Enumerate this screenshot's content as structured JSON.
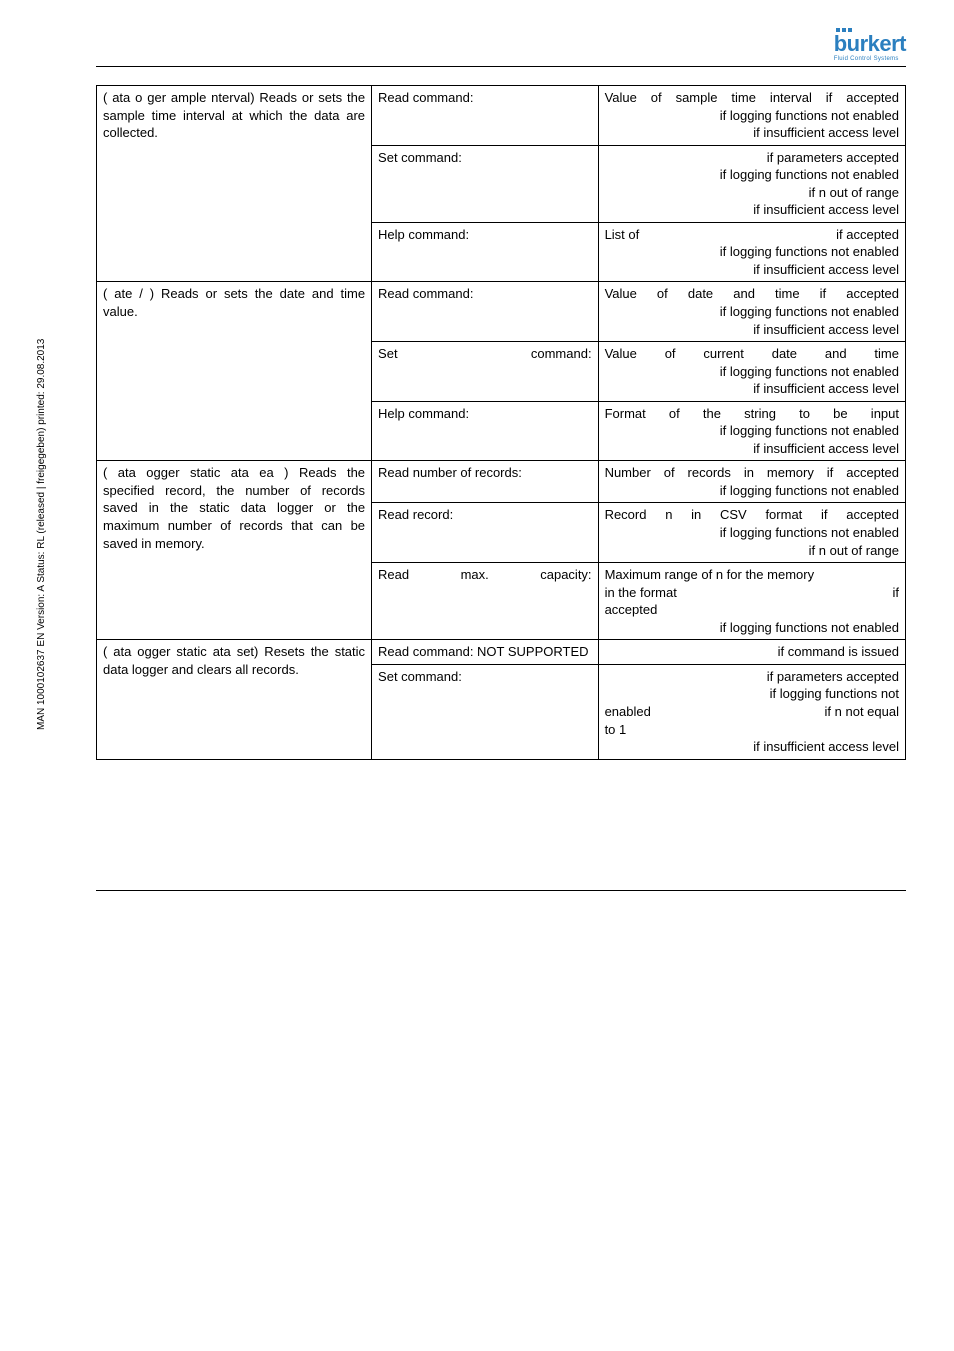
{
  "side_label": "MAN 1000102637 EN Version: A Status: RL (released | freigegeben) printed: 29.08.2013",
  "logo_word": "burkert",
  "logo_tag": "Fluid Control Systems",
  "table": {
    "rows": [
      {
        "c1": "( ata o ger ample nterval) Reads or sets the sample time interval at which the data are collected.",
        "c1_rowspan": 3,
        "c2": "Read command:",
        "c3": "Value of sample time interval if accepted\n if logging functions not enabled\n if insufficient access level"
      },
      {
        "c2": "Set command:",
        "c3": " if parameters accepted\n if logging functions not enabled\n if n out of range\n if insufficient access level"
      },
      {
        "c2": "Help command:",
        "c3_lines": [
          {
            "left": "List of",
            "right": "if accepted"
          },
          {
            "full": " if logging functions not enabled"
          },
          {
            "full": " if insufficient access level"
          }
        ]
      },
      {
        "c1": "( ate / ) Reads or sets the date and time value.",
        "c1_rowspan": 3,
        "c2": "Read command:",
        "c3": "Value of date and time if accepted\n if logging functions not enabled\n if insufficient access level"
      },
      {
        "c2_lines": [
          {
            "left": "Set",
            "right": "command:"
          }
        ],
        "c3": "Value of current date and time\n if logging functions not enabled\n if insufficient access level"
      },
      {
        "c2": "Help command:",
        "c3": "Format of the string to be input\n if logging functions not enabled\n if insufficient access level"
      },
      {
        "c1": "( ata ogger static ata ea ) Reads the specified record, the number of records saved in the static data logger or the maximum number of records that can be saved in memory.",
        "c1_rowspan": 3,
        "c2": "Read number of records:",
        "c3": "Number of records in memory if accepted\n if logging functions not enabled"
      },
      {
        "c2": "Read record:",
        "c3": "Record n in CSV format if accepted\n if logging functions not enabled\n if n out of range"
      },
      {
        "c2_lines": [
          {
            "left": "Read",
            "mid": "max.",
            "right": "capacity:"
          }
        ],
        "c3_lines": [
          {
            "full": "Maximum range of n for the memory"
          },
          {
            "left": "in the format",
            "right": "if"
          },
          {
            "full": "accepted"
          },
          {
            "full": " if logging functions not enabled"
          }
        ]
      },
      {
        "c1": "( ata ogger static ata set) Resets the static data logger and clears all records.",
        "c1_rowspan": 2,
        "c2": "Read command: NOT SUPPORTED",
        "c3": " if command is issued"
      },
      {
        "c2": "Set command:",
        "c3_lines": [
          {
            "full": " if parameters accepted"
          },
          {
            "full": " if logging functions not"
          },
          {
            "left": "enabled",
            "right": "if n not equal"
          },
          {
            "full": "to 1"
          },
          {
            "full": " if insufficient access level"
          }
        ]
      }
    ]
  }
}
